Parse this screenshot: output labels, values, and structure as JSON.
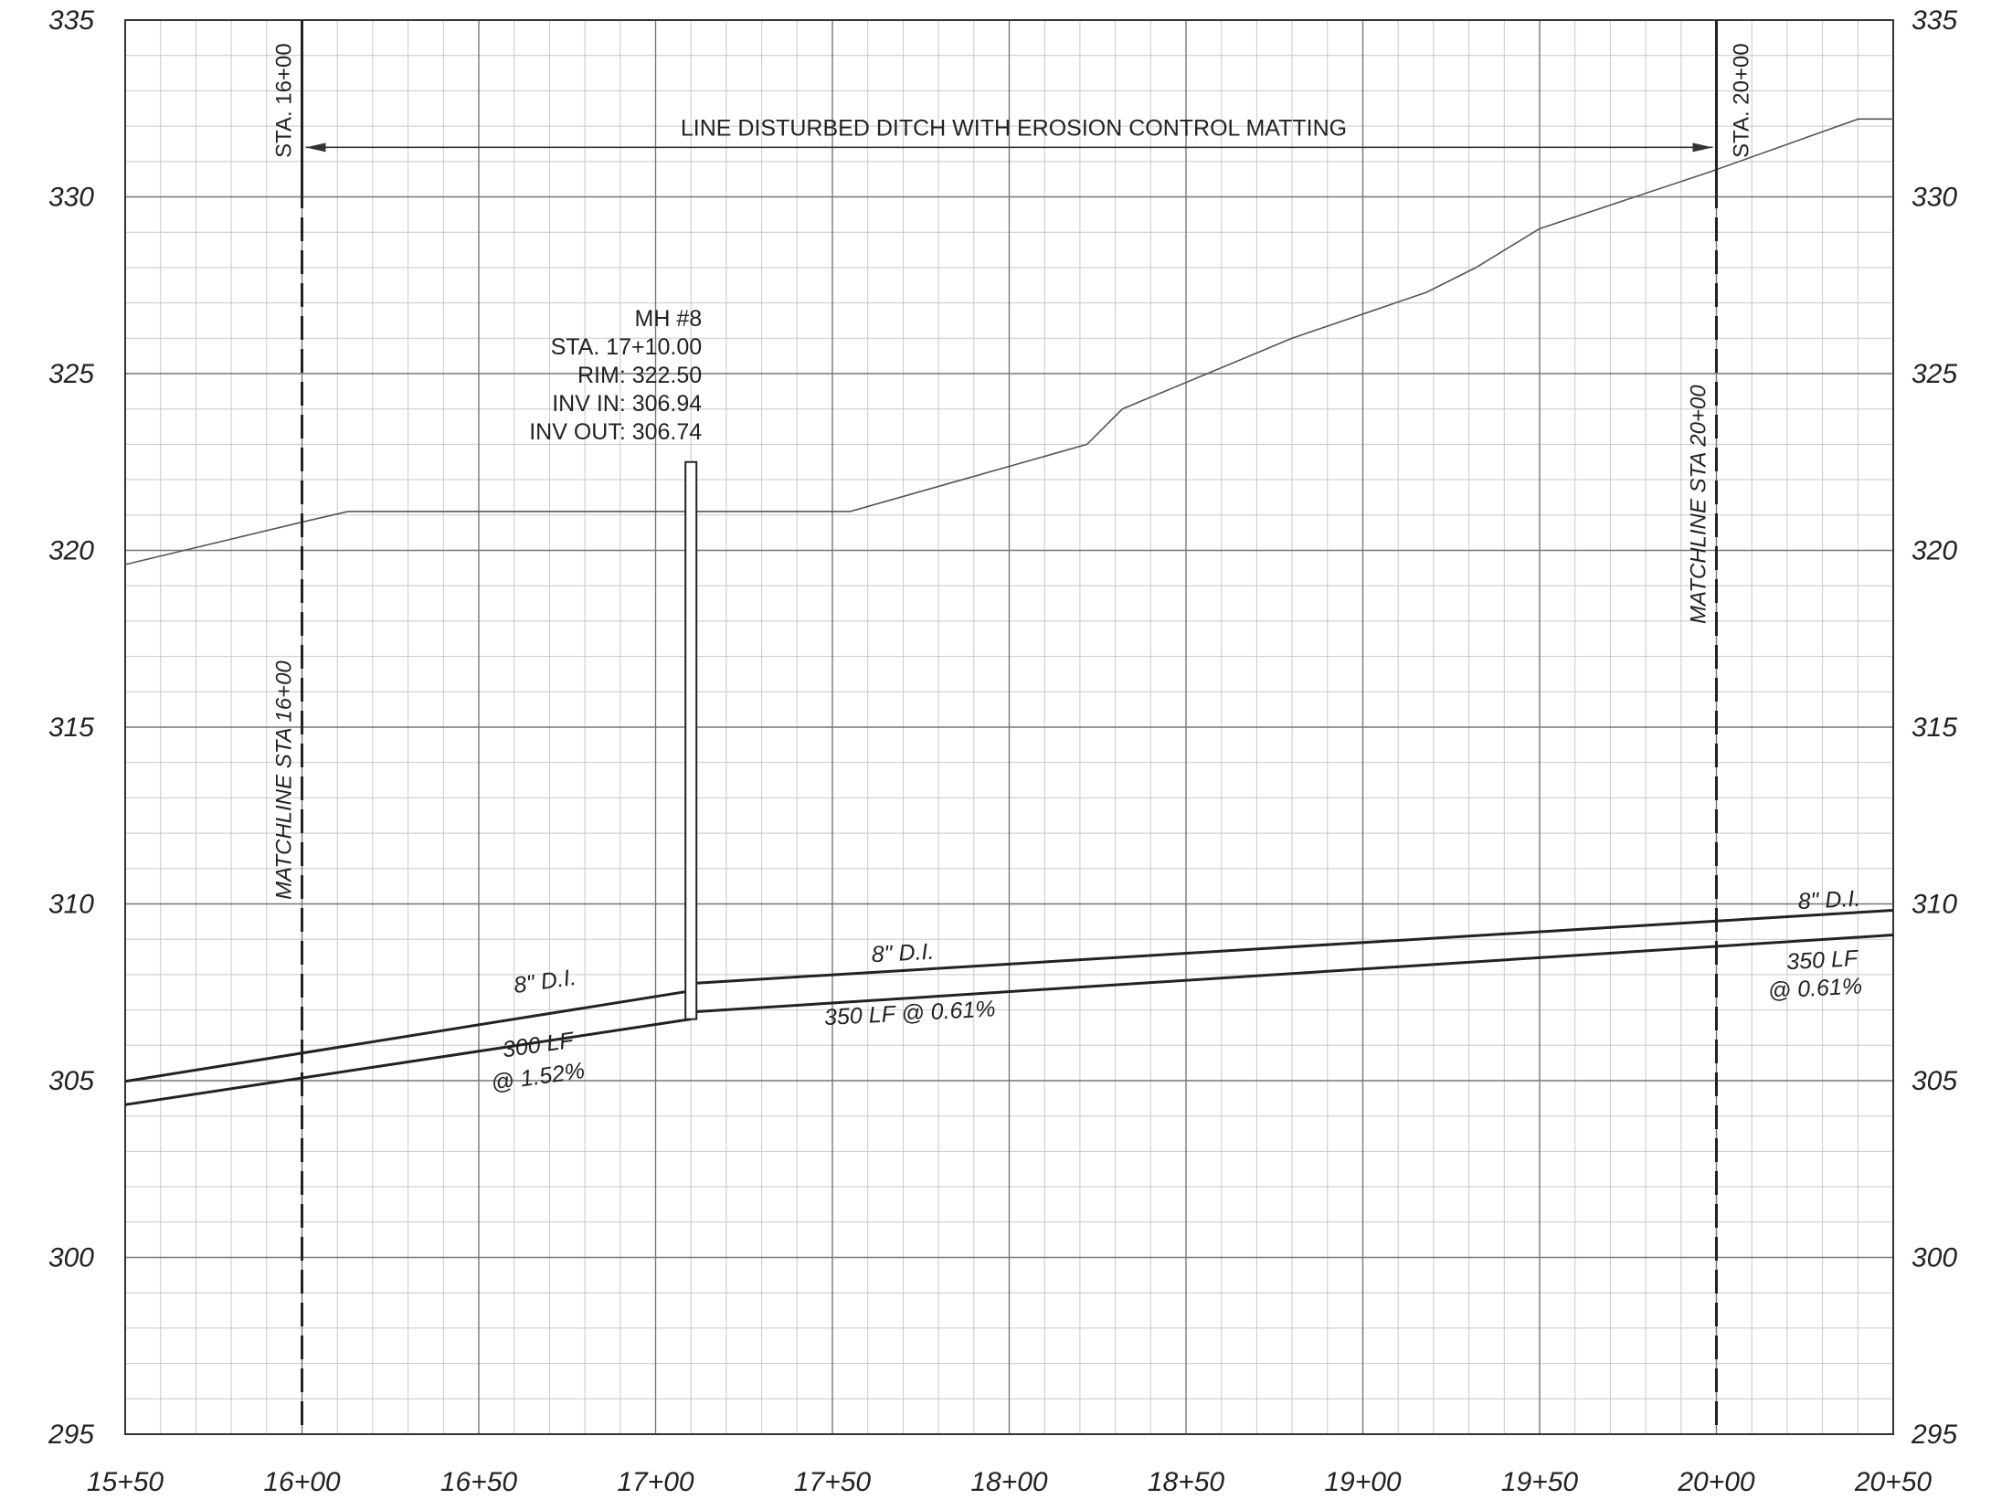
{
  "drawing": {
    "axes": {
      "x_min": 1550,
      "x_max": 2050,
      "y_min": 295,
      "y_max": 335,
      "minor_x_step": 10,
      "major_x_step": 50,
      "minor_y_step": 1,
      "major_y_step": 5,
      "x_ticks": [
        {
          "value": 1550,
          "label": "15+50"
        },
        {
          "value": 1600,
          "label": "16+00"
        },
        {
          "value": 1650,
          "label": "16+50"
        },
        {
          "value": 1700,
          "label": "17+00"
        },
        {
          "value": 1750,
          "label": "17+50"
        },
        {
          "value": 1800,
          "label": "18+00"
        },
        {
          "value": 1850,
          "label": "18+50"
        },
        {
          "value": 1900,
          "label": "19+00"
        },
        {
          "value": 1950,
          "label": "19+50"
        },
        {
          "value": 2000,
          "label": "20+00"
        },
        {
          "value": 2050,
          "label": "20+50"
        }
      ],
      "y_ticks": [
        {
          "value": 295,
          "label": "295"
        },
        {
          "value": 300,
          "label": "300"
        },
        {
          "value": 305,
          "label": "305"
        },
        {
          "value": 310,
          "label": "310"
        },
        {
          "value": 315,
          "label": "315"
        },
        {
          "value": 320,
          "label": "320"
        },
        {
          "value": 325,
          "label": "325"
        },
        {
          "value": 330,
          "label": "330"
        },
        {
          "value": 335,
          "label": "335"
        }
      ]
    },
    "ground_profile": {
      "points": [
        [
          1550,
          319.6
        ],
        [
          1600,
          320.8
        ],
        [
          1613,
          321.1
        ],
        [
          1705,
          321.1
        ],
        [
          1755,
          321.1
        ],
        [
          1822,
          323.0
        ],
        [
          1832,
          324.0
        ],
        [
          1880,
          326.0
        ],
        [
          1918,
          327.3
        ],
        [
          1932,
          328.0
        ],
        [
          1950,
          329.1
        ],
        [
          1998,
          330.7
        ],
        [
          2040,
          332.2
        ],
        [
          2050,
          332.2
        ]
      ]
    },
    "pipe_upstream": {
      "crown": [
        [
          1550,
          304.98
        ],
        [
          1710,
          307.54
        ]
      ],
      "invert": [
        [
          1550,
          304.32
        ],
        [
          1710,
          306.74
        ]
      ],
      "size_label": "8\" D.I.",
      "length_label": "300 LF",
      "slope_label": "@ 1.52%"
    },
    "pipe_downstream": {
      "crown": [
        [
          1710,
          307.75
        ],
        [
          2050,
          309.82
        ]
      ],
      "invert": [
        [
          1710,
          306.94
        ],
        [
          2050,
          309.12
        ]
      ],
      "size_label_left": "8\" D.I.",
      "size_label_right": "8\" D.I.",
      "length_slope_label": "350 LF @ 0.61%",
      "length_label_right": "350 LF",
      "slope_label_right": "@ 0.61%"
    },
    "manhole": {
      "station": 1710,
      "rim": 322.5,
      "invert_out": 306.74,
      "name": "MH #8",
      "station_text": "STA. 17+10.00",
      "rim_text": "RIM: 322.50",
      "inv_in_text": "INV IN: 306.94",
      "inv_out_text": "INV OUT: 306.74"
    },
    "matchlines": [
      {
        "station": 1600,
        "rotated_label": "MATCHLINE STA 16+00",
        "top_label": "STA. 16+00"
      },
      {
        "station": 2000,
        "rotated_label": "MATCHLINE STA 20+00",
        "top_label": "STA. 20+00"
      }
    ],
    "ditch_note": {
      "text": "LINE DISTURBED DITCH WITH EROSION CONTROL MATTING",
      "from_station": 1600,
      "to_station": 2000,
      "elevation": 331.4
    }
  }
}
